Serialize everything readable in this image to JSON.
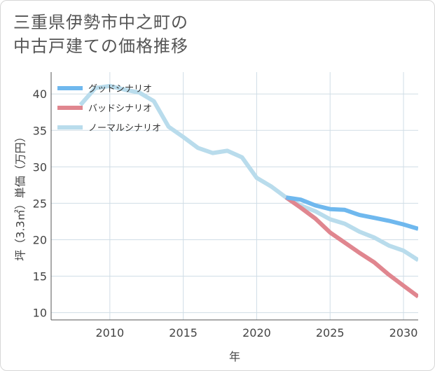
{
  "title": {
    "line1": "三重県伊勢市中之町の",
    "line2": "中古戸建ての価格推移"
  },
  "colors": {
    "good": "#6fb8ee",
    "bad": "#e0868f",
    "normal": "#b9dcec",
    "grid": "#d0dde6",
    "axis": "#555555"
  },
  "chart_data": {
    "type": "line",
    "title": "三重県伊勢市中之町の中古戸建ての価格推移",
    "xlabel": "年",
    "ylabel": "坪（3.3㎡）単価（万円）",
    "xlim": [
      2006,
      2031
    ],
    "ylim": [
      9,
      43
    ],
    "xticks": [
      2010,
      2015,
      2020,
      2025,
      2030
    ],
    "yticks": [
      10,
      15,
      20,
      25,
      30,
      35,
      40
    ],
    "grid": true,
    "legend_position": "top-left",
    "series": [
      {
        "name": "グッドシナリオ",
        "color": "#6fb8ee",
        "points": [
          [
            2022,
            25.8
          ],
          [
            2023,
            25.5
          ],
          [
            2024,
            24.7
          ],
          [
            2025,
            24.2
          ],
          [
            2026,
            24.1
          ],
          [
            2027,
            23.4
          ],
          [
            2028,
            23.0
          ],
          [
            2029,
            22.6
          ],
          [
            2030,
            22.1
          ],
          [
            2031,
            21.5
          ]
        ]
      },
      {
        "name": "バッドシナリオ",
        "color": "#e0868f",
        "points": [
          [
            2022,
            25.8
          ],
          [
            2023,
            24.4
          ],
          [
            2024,
            22.9
          ],
          [
            2025,
            21.0
          ],
          [
            2026,
            19.6
          ],
          [
            2027,
            18.2
          ],
          [
            2028,
            16.9
          ],
          [
            2029,
            15.2
          ],
          [
            2030,
            13.7
          ],
          [
            2031,
            12.2
          ]
        ]
      },
      {
        "name": "ノーマルシナリオ",
        "color": "#b9dcec",
        "points": [
          [
            2008,
            38.5
          ],
          [
            2009,
            40.8
          ],
          [
            2010,
            41.1
          ],
          [
            2011,
            40.6
          ],
          [
            2012,
            40.2
          ],
          [
            2013,
            39.0
          ],
          [
            2014,
            35.5
          ],
          [
            2015,
            34.1
          ],
          [
            2016,
            32.6
          ],
          [
            2017,
            31.9
          ],
          [
            2018,
            32.2
          ],
          [
            2019,
            31.3
          ],
          [
            2020,
            28.5
          ],
          [
            2021,
            27.3
          ],
          [
            2022,
            25.8
          ],
          [
            2023,
            24.7
          ],
          [
            2024,
            23.9
          ],
          [
            2025,
            22.8
          ],
          [
            2026,
            22.2
          ],
          [
            2027,
            21.1
          ],
          [
            2028,
            20.3
          ],
          [
            2029,
            19.2
          ],
          [
            2030,
            18.5
          ],
          [
            2031,
            17.2
          ]
        ]
      }
    ]
  }
}
